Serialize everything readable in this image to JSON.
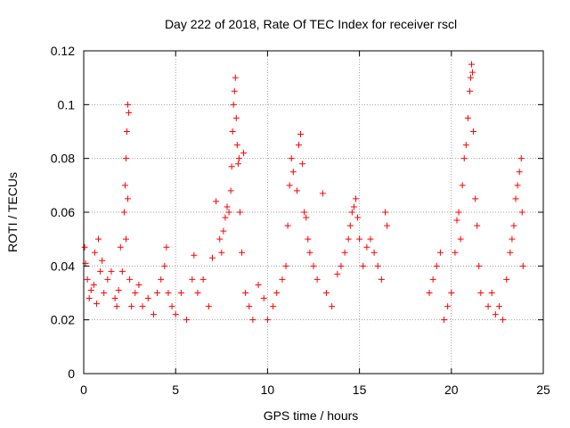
{
  "chart_data": {
    "type": "scatter",
    "title": "Day 222 of 2018, Rate Of TEC Index for receiver rscl",
    "xlabel": "GPS time / hours",
    "ylabel": "ROTI / TECUs",
    "xlim": [
      0,
      25
    ],
    "ylim": [
      0,
      0.12
    ],
    "xticks": [
      0,
      5,
      10,
      15,
      20,
      25
    ],
    "xtick_labels": [
      "0",
      "5",
      "10",
      "15",
      "20",
      "25"
    ],
    "yticks": [
      0,
      0.02,
      0.04,
      0.06,
      0.08,
      0.1,
      0.12
    ],
    "ytick_labels": [
      "0",
      "0.02",
      "0.04",
      "0.06",
      "0.08",
      "0.1",
      "0.12"
    ],
    "grid": true,
    "marker": "plus",
    "color": "#ff0000",
    "series": [
      {
        "name": "ROTI",
        "points": [
          [
            0.05,
            0.047
          ],
          [
            0.1,
            0.041
          ],
          [
            0.2,
            0.035
          ],
          [
            0.3,
            0.028
          ],
          [
            0.4,
            0.031
          ],
          [
            0.55,
            0.033
          ],
          [
            0.6,
            0.045
          ],
          [
            0.7,
            0.026
          ],
          [
            0.8,
            0.05
          ],
          [
            0.9,
            0.038
          ],
          [
            1.0,
            0.042
          ],
          [
            1.1,
            0.03
          ],
          [
            1.3,
            0.035
          ],
          [
            1.5,
            0.038
          ],
          [
            1.7,
            0.028
          ],
          [
            1.8,
            0.025
          ],
          [
            1.9,
            0.031
          ],
          [
            2.0,
            0.047
          ],
          [
            2.1,
            0.038
          ],
          [
            2.2,
            0.06
          ],
          [
            2.25,
            0.07
          ],
          [
            2.3,
            0.08
          ],
          [
            2.35,
            0.09
          ],
          [
            2.4,
            0.1
          ],
          [
            2.45,
            0.097
          ],
          [
            2.3,
            0.05
          ],
          [
            2.4,
            0.065
          ],
          [
            2.5,
            0.035
          ],
          [
            2.6,
            0.025
          ],
          [
            2.8,
            0.03
          ],
          [
            3.0,
            0.033
          ],
          [
            3.2,
            0.025
          ],
          [
            3.5,
            0.028
          ],
          [
            3.8,
            0.022
          ],
          [
            4.0,
            0.03
          ],
          [
            4.2,
            0.035
          ],
          [
            4.4,
            0.04
          ],
          [
            4.5,
            0.047
          ],
          [
            4.6,
            0.03
          ],
          [
            4.8,
            0.025
          ],
          [
            5.0,
            0.022
          ],
          [
            5.3,
            0.03
          ],
          [
            5.6,
            0.02
          ],
          [
            5.9,
            0.035
          ],
          [
            6.0,
            0.044
          ],
          [
            6.2,
            0.03
          ],
          [
            6.5,
            0.035
          ],
          [
            6.8,
            0.025
          ],
          [
            7.0,
            0.043
          ],
          [
            7.2,
            0.064
          ],
          [
            7.4,
            0.05
          ],
          [
            7.5,
            0.045
          ],
          [
            7.6,
            0.053
          ],
          [
            7.7,
            0.058
          ],
          [
            7.8,
            0.062
          ],
          [
            7.9,
            0.06
          ],
          [
            8.0,
            0.068
          ],
          [
            8.05,
            0.077
          ],
          [
            8.1,
            0.09
          ],
          [
            8.15,
            0.1
          ],
          [
            8.2,
            0.105
          ],
          [
            8.25,
            0.11
          ],
          [
            8.3,
            0.095
          ],
          [
            8.35,
            0.085
          ],
          [
            8.4,
            0.078
          ],
          [
            8.45,
            0.08
          ],
          [
            8.5,
            0.06
          ],
          [
            8.6,
            0.045
          ],
          [
            8.7,
            0.082
          ],
          [
            8.8,
            0.03
          ],
          [
            9.0,
            0.025
          ],
          [
            9.2,
            0.02
          ],
          [
            9.5,
            0.033
          ],
          [
            9.8,
            0.028
          ],
          [
            10.0,
            0.02
          ],
          [
            10.3,
            0.025
          ],
          [
            10.5,
            0.03
          ],
          [
            10.8,
            0.035
          ],
          [
            11.0,
            0.04
          ],
          [
            11.1,
            0.055
          ],
          [
            11.2,
            0.07
          ],
          [
            11.3,
            0.08
          ],
          [
            11.4,
            0.075
          ],
          [
            11.6,
            0.068
          ],
          [
            11.7,
            0.085
          ],
          [
            11.8,
            0.089
          ],
          [
            11.9,
            0.078
          ],
          [
            12.0,
            0.06
          ],
          [
            12.1,
            0.058
          ],
          [
            12.2,
            0.05
          ],
          [
            12.3,
            0.045
          ],
          [
            12.5,
            0.04
          ],
          [
            12.7,
            0.035
          ],
          [
            13.0,
            0.067
          ],
          [
            13.2,
            0.03
          ],
          [
            13.5,
            0.025
          ],
          [
            13.8,
            0.037
          ],
          [
            14.0,
            0.04
          ],
          [
            14.2,
            0.045
          ],
          [
            14.4,
            0.05
          ],
          [
            14.5,
            0.055
          ],
          [
            14.6,
            0.06
          ],
          [
            14.7,
            0.062
          ],
          [
            14.8,
            0.065
          ],
          [
            14.9,
            0.058
          ],
          [
            15.0,
            0.05
          ],
          [
            15.2,
            0.04
          ],
          [
            15.4,
            0.047
          ],
          [
            15.6,
            0.05
          ],
          [
            15.8,
            0.045
          ],
          [
            16.0,
            0.04
          ],
          [
            16.2,
            0.035
          ],
          [
            16.4,
            0.06
          ],
          [
            16.5,
            0.055
          ],
          [
            18.8,
            0.03
          ],
          [
            19.0,
            0.035
          ],
          [
            19.2,
            0.04
          ],
          [
            19.4,
            0.045
          ],
          [
            19.6,
            0.02
          ],
          [
            19.8,
            0.025
          ],
          [
            20.0,
            0.03
          ],
          [
            20.2,
            0.045
          ],
          [
            20.3,
            0.057
          ],
          [
            20.4,
            0.06
          ],
          [
            20.5,
            0.05
          ],
          [
            20.6,
            0.07
          ],
          [
            20.7,
            0.08
          ],
          [
            20.8,
            0.085
          ],
          [
            20.9,
            0.095
          ],
          [
            21.0,
            0.105
          ],
          [
            21.05,
            0.11
          ],
          [
            21.1,
            0.115
          ],
          [
            21.15,
            0.112
          ],
          [
            21.2,
            0.09
          ],
          [
            21.3,
            0.065
          ],
          [
            21.4,
            0.055
          ],
          [
            21.5,
            0.04
          ],
          [
            21.6,
            0.03
          ],
          [
            22.0,
            0.025
          ],
          [
            22.2,
            0.03
          ],
          [
            22.4,
            0.022
          ],
          [
            22.6,
            0.025
          ],
          [
            22.8,
            0.02
          ],
          [
            23.0,
            0.035
          ],
          [
            23.2,
            0.045
          ],
          [
            23.3,
            0.05
          ],
          [
            23.4,
            0.055
          ],
          [
            23.5,
            0.065
          ],
          [
            23.6,
            0.07
          ],
          [
            23.7,
            0.075
          ],
          [
            23.8,
            0.08
          ],
          [
            23.85,
            0.06
          ],
          [
            23.9,
            0.04
          ]
        ]
      }
    ]
  }
}
